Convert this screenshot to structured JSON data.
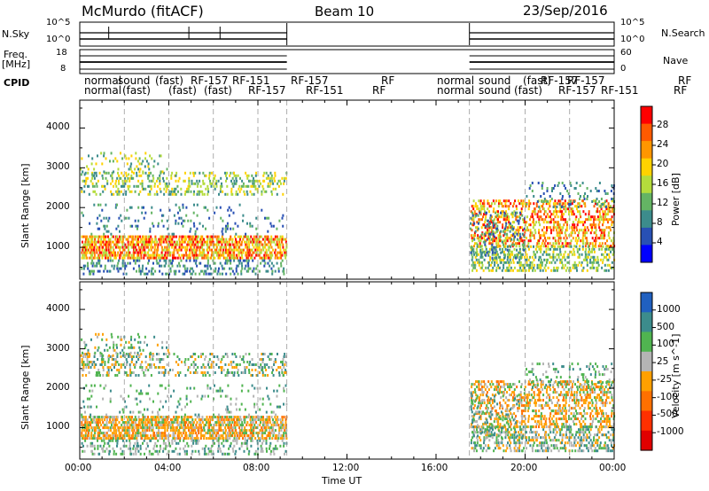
{
  "header": {
    "title": "McMurdo (fitACF)",
    "beam": "Beam 10",
    "date": "23/Sep/2016"
  },
  "left_labels": {
    "nsky": "N.Sky",
    "freq": "Freq.",
    "freq_unit": "[MHz]",
    "cpid": "CPID",
    "nsky_top": "10^5",
    "nsky_bottom": "10^0",
    "freq_top": "18",
    "freq_bottom": "8"
  },
  "right_labels": {
    "nsearch": "N.Search",
    "nave": "Nave",
    "nsearch_top": "10^5",
    "nsearch_bottom": "10^0",
    "nave_top": "60",
    "nave_bottom": "0"
  },
  "cpid_labels_row1": [
    "normal",
    "sound",
    "(fast)",
    "RF-157",
    "RF-151",
    "RF-157",
    "RF",
    "normal",
    "sound",
    "(fast)",
    "RF-157",
    "RF-157",
    "RF"
  ],
  "cpid_labels_row2": [
    "normal",
    "(fast)",
    "(fast)",
    "(fast)",
    "RF-157",
    "RF-151",
    "RF",
    "normal",
    "sound",
    "(fast)",
    "RF-157",
    "RF-151",
    "RF"
  ],
  "time_axis": {
    "ticks": [
      "00:00",
      "04:00",
      "08:00",
      "12:00",
      "16:00",
      "20:00",
      "00:00"
    ],
    "label": "Time UT"
  },
  "chart_data": [
    {
      "type": "heatmap",
      "panel": "power",
      "ylabel": "Slant Range [km]",
      "yticks": [
        1000,
        2000,
        3000,
        4000
      ],
      "ylim": [
        200,
        4700
      ],
      "xlim_hours": [
        0,
        24
      ],
      "colorbar_label": "Power [dB]",
      "colorbar_ticks": [
        "28",
        "24",
        "20",
        "16",
        "12",
        "8",
        "4"
      ],
      "colorbar_colors": [
        "#ff0000",
        "#ff5a00",
        "#ff9600",
        "#ffd200",
        "#b4dc3c",
        "#64b464",
        "#3c8c8c",
        "#2850b4",
        "#0000ff"
      ],
      "data_coverage_hours": [
        [
          0,
          9.3
        ],
        [
          17.5,
          24
        ]
      ]
    },
    {
      "type": "heatmap",
      "panel": "velocity",
      "ylabel": "Slant Range [km]",
      "yticks": [
        1000,
        2000,
        3000,
        4000
      ],
      "ylim": [
        200,
        4700
      ],
      "xlim_hours": [
        0,
        24
      ],
      "colorbar_label": "Velocity [m s^-1]",
      "colorbar_ticks": [
        "1000",
        "500",
        "100",
        "25",
        "-25",
        "-100",
        "-500",
        "-1000"
      ],
      "colorbar_colors": [
        "#2060c0",
        "#3c8c8c",
        "#50b450",
        "#b4b4b4",
        "#ffa000",
        "#ff7000",
        "#ff3000",
        "#e00000"
      ],
      "data_coverage_hours": [
        [
          0,
          9.3
        ],
        [
          17.5,
          24
        ]
      ]
    }
  ]
}
